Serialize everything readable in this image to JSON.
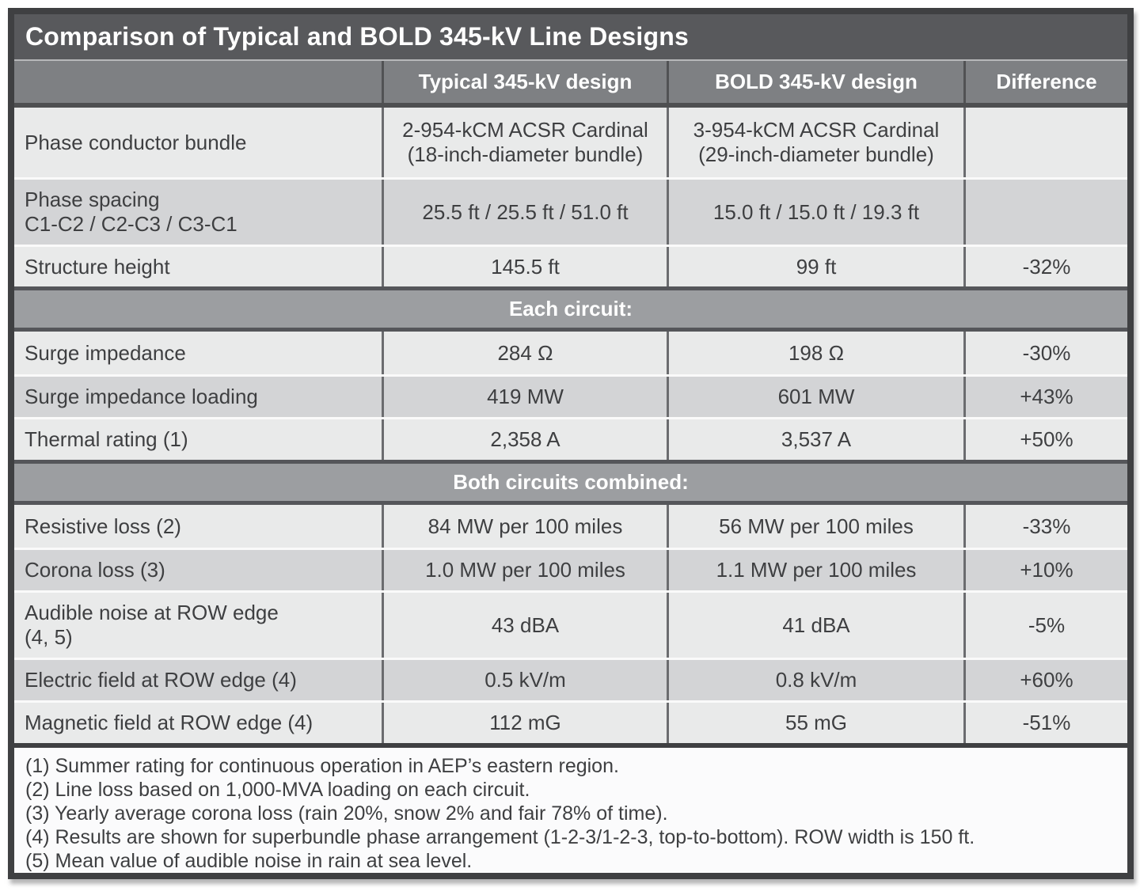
{
  "table": {
    "title": "Comparison of Typical and BOLD 345-kV Line Designs",
    "columns": {
      "row_header": "",
      "typical": "Typical 345-kV design",
      "bold": "BOLD 345-kV design",
      "difference": "Difference"
    },
    "rows": [
      {
        "label": "Phase conductor bundle",
        "typical": "2-954-kCM ACSR Cardinal\n(18-inch-diameter bundle)",
        "bold": "3-954-kCM ACSR Cardinal\n(29-inch-diameter bundle)",
        "difference": ""
      },
      {
        "label": "Phase spacing\nC1-C2 / C2-C3 / C3-C1",
        "typical": "25.5 ft / 25.5 ft / 51.0 ft",
        "bold": "15.0 ft / 15.0 ft / 19.3 ft",
        "difference": ""
      },
      {
        "label": "Structure height",
        "typical": "145.5 ft",
        "bold": "99 ft",
        "difference": "-32%"
      },
      {
        "label": "Surge impedance",
        "typical": "284 Ω",
        "bold": "198 Ω",
        "difference": "-30%"
      },
      {
        "label": "Surge impedance loading",
        "typical": "419 MW",
        "bold": "601 MW",
        "difference": "+43%"
      },
      {
        "label": "Thermal rating (1)",
        "typical": "2,358 A",
        "bold": "3,537 A",
        "difference": "+50%"
      },
      {
        "label": "Resistive loss (2)",
        "typical": "84 MW per 100 miles",
        "bold": "56 MW per 100 miles",
        "difference": "-33%"
      },
      {
        "label": "Corona loss (3)",
        "typical": "1.0 MW per 100 miles",
        "bold": "1.1 MW per 100 miles",
        "difference": "+10%"
      },
      {
        "label": "Audible noise at ROW edge\n(4, 5)",
        "typical": "43 dBA",
        "bold": "41 dBA",
        "difference": "-5%"
      },
      {
        "label": "Electric field at ROW edge (4)",
        "typical": "0.5 kV/m",
        "bold": "0.8 kV/m",
        "difference": "+60%"
      },
      {
        "label": "Magnetic field at ROW edge (4)",
        "typical": "112 mG",
        "bold": "55 mG",
        "difference": "-51%"
      }
    ],
    "sections": [
      {
        "label": "Each circuit:"
      },
      {
        "label": "Both circuits combined:"
      }
    ],
    "footnotes": [
      "(1) Summer rating for continuous operation in AEP’s eastern region.",
      "(2) Line loss based on 1,000-MVA loading on each circuit.",
      "(3) Yearly average corona loss (rain 20%, snow 2% and fair 78% of time).",
      "(4) Results are shown for superbundle phase arrangement (1-2-3/1-2-3, top-to-bottom). ROW width is 150 ft.",
      "(5) Mean value of audible noise in rain at sea level."
    ],
    "colors": {
      "frame_border": "#3f4042",
      "title_bar_bg": "#58595c",
      "header_row_bg": "#7e8083",
      "section_band_bg": "#9c9ea1",
      "row_light_bg": "#e9eaea",
      "row_dark_bg": "#d3d4d6",
      "footnote_bg": "#fbfbfc",
      "text_dark": "#3e3f41",
      "text_light": "#ffffff"
    }
  }
}
